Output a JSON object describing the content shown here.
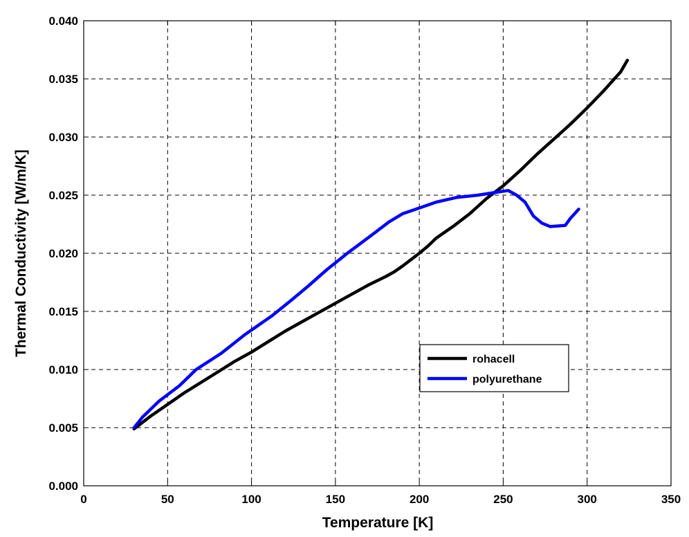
{
  "chart_data": {
    "type": "line",
    "title": "",
    "xlabel": "Temperature [K]",
    "ylabel": "Thermal Conductivity [W/m/K]",
    "xlim": [
      0,
      350
    ],
    "ylim": [
      0,
      0.04
    ],
    "xticks": [
      0,
      50,
      100,
      150,
      200,
      250,
      300,
      350
    ],
    "yticks": [
      0.0,
      0.005,
      0.01,
      0.015,
      0.02,
      0.025,
      0.03,
      0.035,
      0.04
    ],
    "xtick_labels": [
      "0",
      "50",
      "100",
      "150",
      "200",
      "250",
      "300",
      "350"
    ],
    "ytick_labels": [
      "0.000",
      "0.005",
      "0.010",
      "0.015",
      "0.020",
      "0.025",
      "0.030",
      "0.035",
      "0.040"
    ],
    "grid": true,
    "legend_position": "center-right",
    "series": [
      {
        "name": "rohacell",
        "color": "#000000",
        "x": [
          30,
          40,
          50,
          60,
          70,
          80,
          90,
          100,
          110,
          120,
          130,
          140,
          150,
          160,
          170,
          180,
          185,
          190,
          200,
          205,
          210,
          220,
          230,
          240,
          250,
          260,
          270,
          280,
          290,
          300,
          310,
          320,
          324
        ],
        "y": [
          0.0049,
          0.006,
          0.007,
          0.008,
          0.0089,
          0.0098,
          0.0107,
          0.0115,
          0.0124,
          0.0133,
          0.0141,
          0.0149,
          0.0157,
          0.0165,
          0.0173,
          0.018,
          0.0184,
          0.0189,
          0.02,
          0.0206,
          0.0213,
          0.0223,
          0.0234,
          0.0247,
          0.0258,
          0.0271,
          0.0285,
          0.0298,
          0.0311,
          0.0325,
          0.034,
          0.0356,
          0.0366
        ]
      },
      {
        "name": "polyurethane",
        "color": "#0000ff",
        "x": [
          30,
          35,
          45,
          57,
          67,
          82,
          96,
          112,
          124,
          134,
          145,
          158,
          172,
          182,
          190,
          198,
          210,
          222,
          235,
          248,
          253,
          258,
          263,
          268,
          273,
          278,
          287,
          290,
          295
        ],
        "y": [
          0.005,
          0.0059,
          0.0073,
          0.0086,
          0.01,
          0.0114,
          0.013,
          0.0146,
          0.016,
          0.0172,
          0.0186,
          0.0201,
          0.0216,
          0.0227,
          0.0234,
          0.0238,
          0.0244,
          0.0248,
          0.025,
          0.0253,
          0.0254,
          0.025,
          0.0244,
          0.0232,
          0.0226,
          0.0223,
          0.0224,
          0.023,
          0.0238
        ]
      }
    ]
  }
}
